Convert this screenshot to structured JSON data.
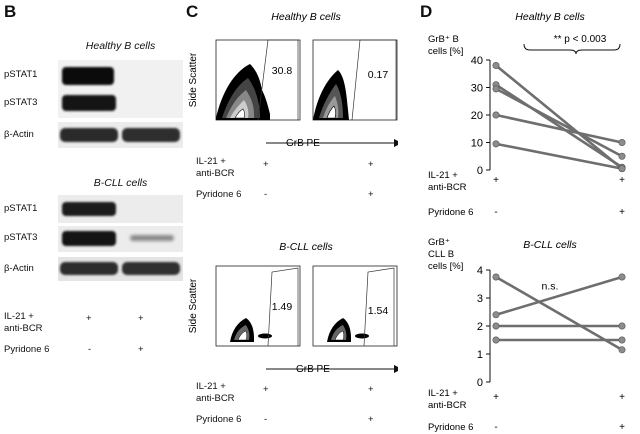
{
  "panels": {
    "B": {
      "letter": "B",
      "healthy": {
        "title": "Healthy B cells",
        "rows": [
          "pSTAT1",
          "pSTAT3",
          "β-Actin"
        ]
      },
      "cll": {
        "title": "B-CLL cells",
        "rows": [
          "pSTAT1",
          "pSTAT3",
          "β-Actin"
        ]
      },
      "conditions": {
        "il21": "IL-21 +\nanti-BCR",
        "pyridone": "Pyridone 6",
        "lane1_il21": "+",
        "lane2_il21": "+",
        "lane1_pyr": "-",
        "lane2_pyr": "+"
      }
    },
    "C": {
      "letter": "C",
      "healthy": {
        "title": "Healthy B cells",
        "pct_left": "30.8",
        "pct_right": "0.17"
      },
      "cll": {
        "title": "B-CLL cells",
        "pct_left": "1.49",
        "pct_right": "1.54"
      },
      "yaxis": "Side Scatter",
      "xaxis": "GrB PE",
      "conditions": {
        "il21": "IL-21 +\nanti-BCR",
        "pyridone": "Pyridone 6",
        "lane1_il21": "+",
        "lane2_il21": "+",
        "lane1_pyr": "-",
        "lane2_pyr": "+"
      }
    },
    "D": {
      "letter": "D"
    }
  },
  "chart_data": [
    {
      "type": "line",
      "title": "Healthy B cells",
      "ylabel": "GrB⁺ B\ncells [%]",
      "ylim": [
        0,
        40
      ],
      "yticks": [
        0,
        10,
        20,
        30,
        40
      ],
      "annotation": "** p < 0.003",
      "x": [
        "IL-21 + anti-BCR, Pyridone 6 -",
        "IL-21 + anti-BCR, Pyridone 6 +"
      ],
      "series": [
        {
          "values": [
            38,
            0.5
          ]
        },
        {
          "values": [
            31,
            1
          ]
        },
        {
          "values": [
            29.5,
            5
          ]
        },
        {
          "values": [
            20,
            10
          ]
        },
        {
          "values": [
            9.5,
            0.5
          ]
        }
      ],
      "conditions": {
        "il21": "IL-21 +\nanti-BCR",
        "pyridone": "Pyridone 6",
        "lane1_il21": "+",
        "lane2_il21": "+",
        "lane1_pyr": "-",
        "lane2_pyr": "+"
      }
    },
    {
      "type": "line",
      "title": "B-CLL cells",
      "ylabel": "GrB⁺\nCLL B\ncells [%]",
      "ylim": [
        0,
        4
      ],
      "yticks": [
        0,
        1,
        2,
        3,
        4
      ],
      "annotation": "n.s.",
      "x": [
        "IL-21 + anti-BCR, Pyridone 6 -",
        "IL-21 + anti-BCR, Pyridone 6 +"
      ],
      "series": [
        {
          "values": [
            3.75,
            1.15
          ]
        },
        {
          "values": [
            2.4,
            3.75
          ]
        },
        {
          "values": [
            2.0,
            2.0
          ]
        },
        {
          "values": [
            1.5,
            1.5
          ]
        }
      ],
      "conditions": {
        "il21": "IL-21 +\nanti-BCR",
        "pyridone": "Pyridone 6",
        "lane1_il21": "+",
        "lane2_il21": "+",
        "lane1_pyr": "-",
        "lane2_pyr": "+"
      }
    }
  ]
}
